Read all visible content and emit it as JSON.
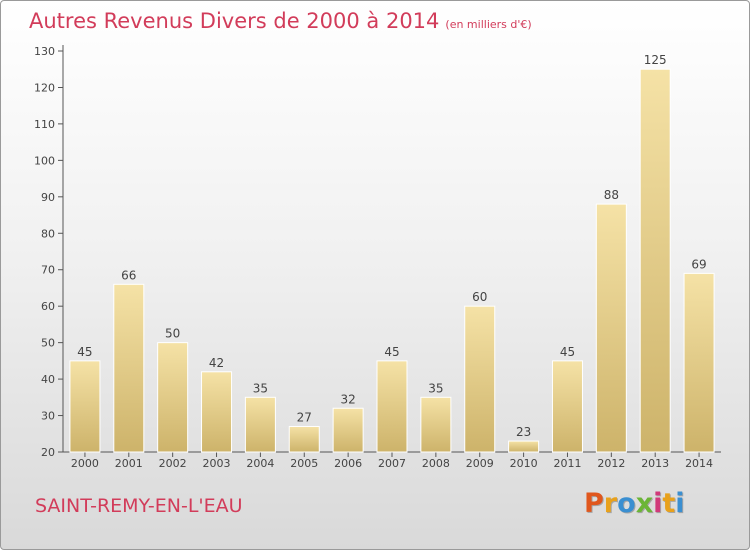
{
  "header": {
    "title": "Autres Revenus Divers de 2000 à 2014",
    "subtitle": "(en milliers d'€)"
  },
  "footer": {
    "commune": "SAINT-REMY-EN-L'EAU",
    "brand_letters": [
      "P",
      "r",
      "o",
      "x",
      "i",
      "t",
      "i"
    ],
    "brand_colors": [
      "#e0571d",
      "#e8a11c",
      "#3a8fd1",
      "#6bb536",
      "#d13a7a",
      "#e8a11c",
      "#3a8fd1"
    ]
  },
  "colors": {
    "bar_light": "#f5e2a6",
    "bar_dark": "#cdb36a",
    "accent": "#d23c5a"
  },
  "chart_data": {
    "type": "bar",
    "title": "Autres Revenus Divers de 2000 à 2014",
    "subtitle": "(en milliers d'€)",
    "categories": [
      "2000",
      "2001",
      "2002",
      "2003",
      "2004",
      "2005",
      "2006",
      "2007",
      "2008",
      "2009",
      "2010",
      "2011",
      "2012",
      "2013",
      "2014"
    ],
    "values": [
      45,
      66,
      50,
      42,
      35,
      27,
      32,
      45,
      35,
      60,
      23,
      45,
      88,
      125,
      69
    ],
    "ylim": [
      20,
      130
    ],
    "yticks": [
      20,
      30,
      40,
      50,
      60,
      70,
      80,
      90,
      100,
      110,
      120,
      130
    ],
    "grid": false,
    "legend": "none"
  }
}
